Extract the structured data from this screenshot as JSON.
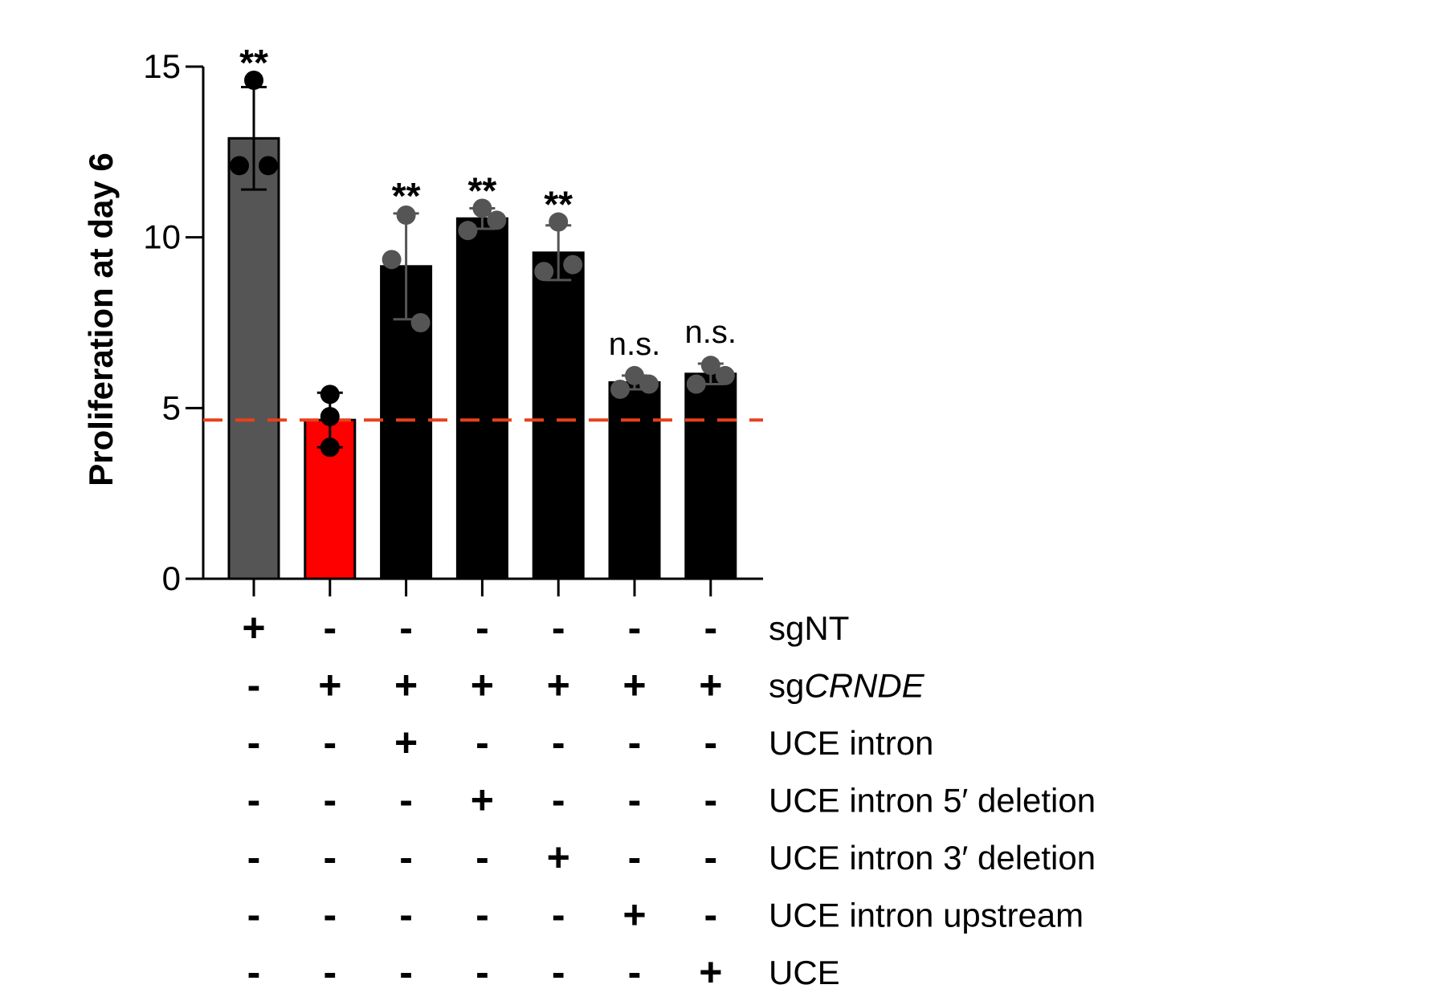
{
  "chart_data": {
    "type": "bar",
    "title": "",
    "ylabel": "Proliferation at day 6",
    "xlabel": "",
    "ylim": [
      0,
      15
    ],
    "yticks": [
      0,
      5,
      10,
      15
    ],
    "reference_line": {
      "value": 4.65,
      "color": "#e8401c",
      "style": "dashed"
    },
    "bars": [
      {
        "value": 12.9,
        "error": 1.5,
        "points": [
          14.6,
          12.1,
          12.1
        ],
        "color": "#555555",
        "point_color": "#000000",
        "significance": "**"
      },
      {
        "value": 4.65,
        "error": 0.8,
        "points": [
          5.4,
          4.75,
          3.85
        ],
        "color": "#ff0000",
        "point_color": "#000000",
        "significance": ""
      },
      {
        "value": 9.15,
        "error": 1.55,
        "points": [
          10.65,
          9.35,
          7.5
        ],
        "color": "#000000",
        "point_color": "#555555",
        "significance": "**"
      },
      {
        "value": 10.55,
        "error": 0.3,
        "points": [
          10.85,
          10.2,
          10.5
        ],
        "color": "#000000",
        "point_color": "#555555",
        "significance": "**"
      },
      {
        "value": 9.55,
        "error": 0.8,
        "points": [
          10.45,
          9.0,
          9.2
        ],
        "color": "#000000",
        "point_color": "#555555",
        "significance": "**"
      },
      {
        "value": 5.75,
        "error": 0.2,
        "points": [
          5.95,
          5.55,
          5.7
        ],
        "color": "#000000",
        "point_color": "#555555",
        "significance": "n.s."
      },
      {
        "value": 6.0,
        "error": 0.3,
        "points": [
          6.25,
          5.7,
          5.95
        ],
        "color": "#000000",
        "point_color": "#555555",
        "significance": "n.s."
      }
    ],
    "conditions": [
      {
        "label_prefix": "sg",
        "label_italic": "",
        "label": "sgNT",
        "signs": [
          "+",
          "-",
          "-",
          "-",
          "-",
          "-",
          "-"
        ]
      },
      {
        "label_prefix": "sg",
        "label_italic": "CRNDE",
        "label": "sgCRNDE",
        "signs": [
          "-",
          "+",
          "+",
          "+",
          "+",
          "+",
          "+"
        ]
      },
      {
        "label_prefix": "UCE intron",
        "label_italic": "",
        "label": "UCE intron",
        "signs": [
          "-",
          "-",
          "+",
          "-",
          "-",
          "-",
          "-"
        ]
      },
      {
        "label_prefix": "UCE intron 5′ deletion",
        "label_italic": "",
        "label": "UCE intron 5′ deletion",
        "signs": [
          "-",
          "-",
          "-",
          "+",
          "-",
          "-",
          "-"
        ]
      },
      {
        "label_prefix": "UCE intron 3′ deletion",
        "label_italic": "",
        "label": "UCE intron 3′ deletion",
        "signs": [
          "-",
          "-",
          "-",
          "-",
          "+",
          "-",
          "-"
        ]
      },
      {
        "label_prefix": "UCE intron upstream",
        "label_italic": "",
        "label": "UCE intron upstream",
        "signs": [
          "-",
          "-",
          "-",
          "-",
          "-",
          "+",
          "-"
        ]
      },
      {
        "label_prefix": "UCE",
        "label_italic": "",
        "label": "UCE",
        "signs": [
          "-",
          "-",
          "-",
          "-",
          "-",
          "-",
          "+"
        ]
      }
    ]
  }
}
